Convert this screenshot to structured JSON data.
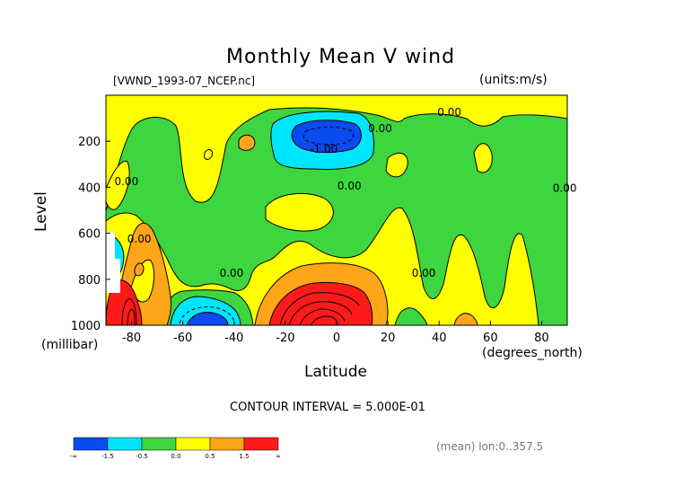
{
  "title": "Monthly Mean V wind",
  "file_label": "[VWND_1993-07_NCEP.nc]",
  "units_label": "(units:m/s)",
  "ylabel": "Level",
  "yunit": "(millibar)",
  "xlabel": "Latitude",
  "xunit": "(degrees_north)",
  "contour_interval": "CONTOUR INTERVAL = 5.000E-01",
  "mean_note": "(mean) lon:0..357.5",
  "chart_data": {
    "type": "heatmap",
    "title": "Monthly Mean V wind",
    "xlabel": "Latitude",
    "ylabel": "Level",
    "xlim": [
      -90,
      90
    ],
    "ylim": [
      1000,
      0
    ],
    "x_ticks": [
      -80,
      -60,
      -40,
      -20,
      0,
      20,
      40,
      60,
      80
    ],
    "y_ticks": [
      200,
      400,
      600,
      800,
      1000
    ],
    "contour_levels": [
      -1.5,
      -1.0,
      -0.5,
      0.0,
      0.5,
      1.0,
      1.5
    ],
    "contour_labels": [
      {
        "text": "0.00",
        "x": -82,
        "y": 390
      },
      {
        "text": "0.00",
        "x": -77,
        "y": 640
      },
      {
        "text": "0.00",
        "x": -41,
        "y": 790
      },
      {
        "text": "-1.00",
        "x": -5,
        "y": 250
      },
      {
        "text": "0.00",
        "x": 5,
        "y": 410
      },
      {
        "text": "0.00",
        "x": 17,
        "y": 160
      },
      {
        "text": "0.00",
        "x": 44,
        "y": 90
      },
      {
        "text": "0.00",
        "x": 34,
        "y": 790
      },
      {
        "text": "0.00",
        "x": 89,
        "y": 420
      }
    ],
    "colorbar": {
      "colors": [
        "#0a4bf0",
        "#00e5ff",
        "#3ed63e",
        "#ffff00",
        "#ffa519",
        "#ff1a1a"
      ],
      "labels": [
        "-∞",
        "-1.5",
        "-0.5",
        "0.0",
        "0.5",
        "1.5",
        "∞"
      ]
    }
  }
}
